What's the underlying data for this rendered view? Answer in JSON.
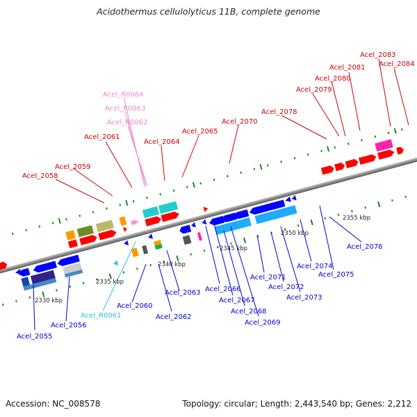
{
  "title": "Acidothermus cellulolyticus 11B, complete genome",
  "footer": {
    "accession": "Accession: NC_008578",
    "stats": "Topology: circular; Length: 2,443,540 bp; Genes: 2,212"
  },
  "scale_labels": [
    "2330 kbp",
    "2335 kbp",
    "2340 kbp",
    "2345 kbp",
    "2350 kbp",
    "2355 kbp"
  ],
  "forward_labels": [
    "Acel_2058",
    "Acel_2059",
    "Acel_2061",
    "Acel_2064",
    "Acel_2065",
    "Acel_2070",
    "Acel_2078",
    "Acel_2079",
    "Acel_2080",
    "Acel_2081",
    "Acel_2083",
    "Acel_2084"
  ],
  "rna_forward_labels": [
    "Acel_R0064",
    "Acel_R0063",
    "Acel_R0062"
  ],
  "reverse_labels": [
    "Acel_2055",
    "Acel_2056",
    "Acel_2060",
    "Acel_2062",
    "Acel_2063",
    "Acel_2066",
    "Acel_2067",
    "Acel_2068",
    "Acel_2069",
    "Acel_2071",
    "Acel_2072",
    "Acel_2073",
    "Acel_2074",
    "Acel_2075",
    "Acel_2076"
  ],
  "rna_reverse_labels": [
    "Acel_R0061"
  ],
  "colors": {
    "backbone": "#8a8a8a",
    "forward_gene": "#ff0000",
    "reverse_gene": "#0000ff",
    "tick": "#1a8a1a",
    "forward_label": "#cc0000",
    "reverse_label": "#0000cc"
  }
}
